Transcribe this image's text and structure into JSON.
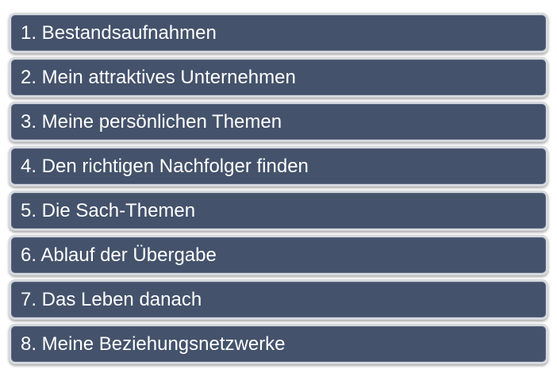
{
  "items": [
    {
      "label": "1. Bestandsaufnahmen"
    },
    {
      "label": "2. Mein attraktives Unternehmen"
    },
    {
      "label": "3. Meine persönlichen Themen"
    },
    {
      "label": "4. Den richtigen Nachfolger finden"
    },
    {
      "label": "5. Die Sach-Themen"
    },
    {
      "label": "6. Ablauf der Übergabe"
    },
    {
      "label": "7. Das Leben danach"
    },
    {
      "label": "8. Meine Beziehungsnetzwerke"
    }
  ],
  "colors": {
    "box_fill": "#44526b",
    "box_border": "#d6d9de",
    "text": "#ffffff"
  }
}
